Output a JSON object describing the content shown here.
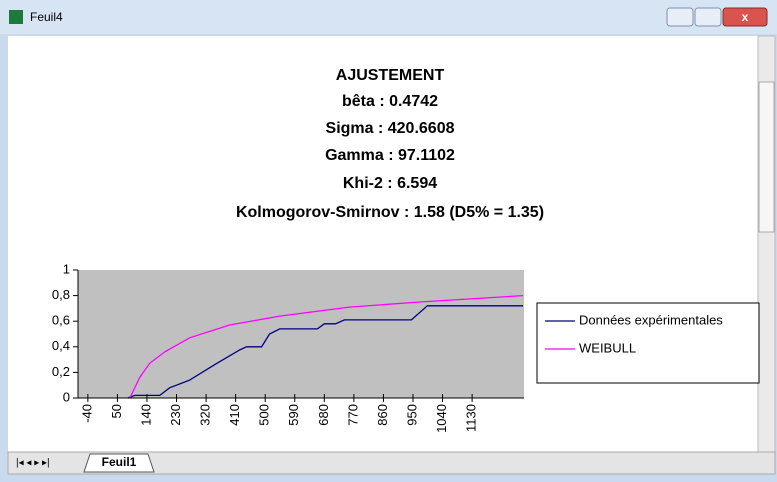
{
  "window": {
    "title": "Feuil4"
  },
  "sheet_tab": "Feuil1",
  "chart_data": {
    "type": "line",
    "title": [
      "AJUSTEMENT",
      "bêta : 0.4742",
      "Sigma : 420.6608",
      "Gamma : 97.1102",
      "Khi-2 : 6.594",
      "Kolmogorov-Smirnov : 1.58   (D5% = 1.35)"
    ],
    "xlim": [
      -70,
      1288
    ],
    "xticks": [
      -40,
      50,
      140,
      230,
      320,
      410,
      500,
      590,
      680,
      770,
      860,
      950,
      1040,
      1130
    ],
    "ylim": [
      0,
      1
    ],
    "yticks": [
      0,
      {
        "value": 0.2,
        "label": "0,2"
      },
      {
        "value": 0.4,
        "label": "0,4"
      },
      {
        "value": 0.6,
        "label": "0,6"
      },
      {
        "value": 0.8,
        "label": "0,8"
      },
      1
    ],
    "plot_background": "#c0c0c0",
    "legend": "right",
    "series": [
      {
        "name": "Données expérimentales",
        "color": "#000080",
        "x": [
          82,
          103,
          179,
          209,
          270,
          346,
          422,
          443,
          489,
          513,
          544,
          659,
          680,
          714,
          741,
          945,
          994,
          1285
        ],
        "values": [
          0,
          0.02,
          0.02,
          0.08,
          0.14,
          0.26,
          0.375,
          0.4,
          0.4,
          0.5,
          0.54,
          0.54,
          0.58,
          0.58,
          0.61,
          0.61,
          0.72,
          0.72
        ]
      },
      {
        "name": "WEIBULL",
        "color": "#ff00ff",
        "x": [
          88,
          118,
          148,
          194,
          270,
          392,
          544,
          756,
          970,
          1285
        ],
        "values": [
          0,
          0.16,
          0.27,
          0.36,
          0.47,
          0.57,
          0.64,
          0.71,
          0.75,
          0.8
        ]
      }
    ]
  }
}
